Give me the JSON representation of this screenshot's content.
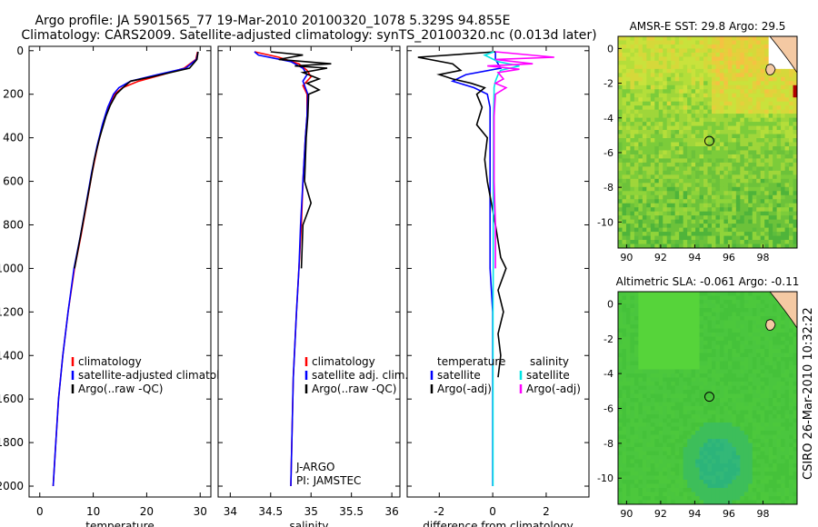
{
  "title_line1": "Argo profile: JA 5901565_77 19-Mar-2010 20100320_1078 5.329S 94.855E",
  "title_line2": "Climatology: CARS2009. Satellite-adjusted climatology: synTS_20100320.nc (0.013d later)",
  "colors": {
    "climatology": "#ff0000",
    "satellite": "#0000ff",
    "argo": "#000000",
    "salinity_satellite": "#00e5e5",
    "salinity_argo": "#ff00ff"
  },
  "chart_data": [
    {
      "type": "line",
      "name": "temperature-panel",
      "xlabel": "temperature",
      "xlim": [
        -2,
        32
      ],
      "ylim": [
        2050,
        -20
      ],
      "xticks": [
        0,
        10,
        20,
        30
      ],
      "xticklabels": [
        "0",
        "10",
        "20",
        "30"
      ],
      "yticks": [
        0,
        200,
        400,
        600,
        800,
        1000,
        1200,
        1400,
        1600,
        1800,
        2000
      ],
      "yticklabels": [
        "0",
        "200",
        "400",
        "600",
        "800",
        "1000",
        "1200",
        "1400",
        "1600",
        "1800",
        "2000"
      ],
      "legend": [
        "climatology",
        "satellite-adjusted climatology",
        "Argo(..raw -QC)"
      ],
      "series": [
        {
          "name": "climatology",
          "color": "#ff0000",
          "depth": [
            5,
            40,
            80,
            110,
            140,
            170,
            200,
            260,
            340,
            440,
            560,
            700,
            850,
            1000,
            1200,
            1400,
            1600,
            1800,
            2000
          ],
          "values": [
            29.5,
            29.2,
            27,
            23,
            18.5,
            15.5,
            14,
            12.8,
            11.8,
            10.8,
            9.8,
            8.8,
            7.7,
            6.5,
            5.3,
            4.3,
            3.5,
            3.0,
            2.5
          ]
        },
        {
          "name": "satellite-adjusted climatology",
          "color": "#0000ff",
          "depth": [
            5,
            40,
            80,
            110,
            140,
            170,
            200,
            260,
            340,
            440,
            560,
            700,
            850,
            1000,
            1200,
            1400,
            1600,
            1800,
            2000
          ],
          "values": [
            29.6,
            29.3,
            27.3,
            22,
            17,
            14.8,
            13.8,
            12.7,
            11.7,
            10.7,
            9.7,
            8.7,
            7.6,
            6.4,
            5.3,
            4.3,
            3.5,
            3.0,
            2.5
          ]
        },
        {
          "name": "Argo(..raw -QC)",
          "color": "#000000",
          "depth": [
            5,
            40,
            80,
            120,
            140,
            160,
            200,
            250,
            300,
            400,
            500,
            600,
            800,
            1000
          ],
          "values": [
            29.6,
            29.4,
            28,
            21,
            17,
            16,
            14.3,
            13.2,
            12.4,
            11.2,
            10.2,
            9.5,
            8.0,
            6.5
          ]
        }
      ]
    },
    {
      "type": "line",
      "name": "salinity-panel",
      "xlabel": "salinity",
      "xlim": [
        33.85,
        36.1
      ],
      "ylim": [
        2050,
        -20
      ],
      "xticks": [
        34,
        34.5,
        35,
        35.5,
        36
      ],
      "xticklabels": [
        "34",
        "34.5",
        "35",
        "35.5",
        "36"
      ],
      "legend": [
        "climatology",
        "satellite adj. clim.",
        "Argo(..raw -QC)"
      ],
      "annotation": [
        "J-ARGO",
        "PI: JAMSTEC"
      ],
      "series": [
        {
          "name": "climatology",
          "color": "#ff0000",
          "depth": [
            5,
            30,
            60,
            90,
            120,
            160,
            200,
            300,
            400,
            600,
            800,
            1000,
            1200,
            1500,
            2000
          ],
          "values": [
            34.3,
            34.6,
            34.85,
            34.95,
            35.0,
            34.9,
            34.95,
            34.95,
            34.93,
            34.9,
            34.88,
            34.85,
            34.82,
            34.78,
            34.75
          ]
        },
        {
          "name": "satellite adj. clim.",
          "color": "#0000ff",
          "depth": [
            5,
            20,
            50,
            80,
            110,
            140,
            170,
            200,
            300,
            400,
            600,
            800,
            1000,
            1200,
            1500,
            2000
          ],
          "values": [
            34.3,
            34.35,
            34.75,
            34.9,
            34.95,
            34.9,
            34.93,
            34.96,
            34.95,
            34.93,
            34.9,
            34.87,
            34.85,
            34.82,
            34.78,
            34.75
          ]
        },
        {
          "name": "Argo(..raw -QC)",
          "color": "#000000",
          "depth": [
            5,
            20,
            40,
            60,
            70,
            80,
            100,
            130,
            150,
            180,
            200,
            300,
            400,
            600,
            700,
            800,
            1000
          ],
          "values": [
            34.5,
            34.9,
            34.6,
            35.25,
            34.8,
            35.2,
            34.9,
            35.1,
            34.95,
            35.1,
            34.97,
            34.96,
            34.94,
            34.92,
            35.0,
            34.9,
            34.88
          ]
        }
      ]
    },
    {
      "type": "line",
      "name": "difference-panel",
      "xlabel": "difference from climatology",
      "xlim": [
        -3.2,
        3.6
      ],
      "ylim": [
        2050,
        -20
      ],
      "xticks": [
        -2,
        0,
        2
      ],
      "xticklabels": [
        "-2",
        "0",
        "2"
      ],
      "legend_groups": [
        {
          "title": "temperature",
          "entries": [
            "satellite",
            "Argo(-adj)"
          ]
        },
        {
          "title": "salinity",
          "entries": [
            "satellite",
            "Argo(-adj)"
          ]
        }
      ],
      "series": [
        {
          "name": "temperature satellite",
          "color": "#0000ff",
          "depth": [
            5,
            40,
            80,
            110,
            140,
            170,
            200,
            260,
            340,
            440,
            560,
            700,
            850,
            1000,
            1200,
            1400,
            1600,
            1800,
            2000
          ],
          "values": [
            0.1,
            0.1,
            0.3,
            -1.0,
            -1.5,
            -0.7,
            -0.2,
            -0.1,
            -0.1,
            -0.1,
            -0.1,
            -0.1,
            -0.1,
            -0.1,
            0,
            0,
            0,
            0,
            0
          ]
        },
        {
          "name": "temperature Argo(-adj)",
          "color": "#000000",
          "depth": [
            5,
            30,
            60,
            90,
            110,
            130,
            150,
            170,
            200,
            260,
            340,
            400,
            500,
            600,
            800,
            950,
            1000,
            1100,
            1200,
            1300,
            1400,
            1500
          ],
          "values": [
            0.1,
            -2.8,
            -1.5,
            -1.2,
            -2.0,
            -1.5,
            -0.8,
            -0.3,
            -0.6,
            -0.4,
            -0.6,
            -0.2,
            -0.3,
            -0.2,
            0.1,
            0.3,
            0.5,
            0.2,
            0.4,
            0.2,
            0.3,
            0.2
          ]
        },
        {
          "name": "salinity satellite",
          "color": "#00e5e5",
          "depth": [
            5,
            20,
            50,
            70,
            90,
            110,
            140,
            170,
            200,
            300,
            400,
            600,
            800,
            1000,
            1200,
            1500,
            2000
          ],
          "values": [
            0.05,
            -0.3,
            0.2,
            1.0,
            0.3,
            0.2,
            0.1,
            0.05,
            0.05,
            0.03,
            0.03,
            0.02,
            0.02,
            0.02,
            0.01,
            0.01,
            0.01
          ]
        },
        {
          "name": "salinity Argo(-adj)",
          "color": "#ff00ff",
          "depth": [
            5,
            30,
            40,
            60,
            70,
            85,
            100,
            130,
            150,
            170,
            200,
            300,
            400,
            600,
            800,
            1000
          ],
          "values": [
            0.1,
            2.3,
            0.1,
            1.5,
            -0.2,
            1.0,
            0.2,
            0.4,
            0.1,
            0.5,
            0.1,
            0.05,
            0.05,
            0.05,
            0.1,
            0.1
          ]
        }
      ]
    },
    {
      "type": "heatmap",
      "name": "sst-map",
      "title": "AMSR-E SST: 29.8  Argo: 29.5",
      "xlim": [
        89.5,
        100
      ],
      "ylim": [
        -11.5,
        0.7
      ],
      "xticks": [
        90,
        92,
        94,
        96,
        98
      ],
      "xticklabels": [
        "90",
        "92",
        "94",
        "96",
        "98"
      ],
      "yticks": [
        0,
        -2,
        -4,
        -6,
        -8,
        -10
      ],
      "yticklabels": [
        "0",
        "-2",
        "-4",
        "-6",
        "-8",
        "-10"
      ],
      "marker": {
        "lon": 94.855,
        "lat": -5.329
      }
    },
    {
      "type": "heatmap",
      "name": "sla-map",
      "title": "Altimetric SLA: -0.061  Argo: -0.11",
      "xlim": [
        89.5,
        100
      ],
      "ylim": [
        -11.5,
        0.7
      ],
      "xticks": [
        90,
        92,
        94,
        96,
        98
      ],
      "xticklabels": [
        "90",
        "92",
        "94",
        "96",
        "98"
      ],
      "yticks": [
        0,
        -2,
        -4,
        -6,
        -8,
        -10
      ],
      "yticklabels": [
        "0",
        "-2",
        "-4",
        "-6",
        "-8",
        "-10"
      ],
      "marker": {
        "lon": 94.855,
        "lat": -5.329
      }
    }
  ],
  "side_label": "CSIRO 26-Mar-2010 10:32:22"
}
